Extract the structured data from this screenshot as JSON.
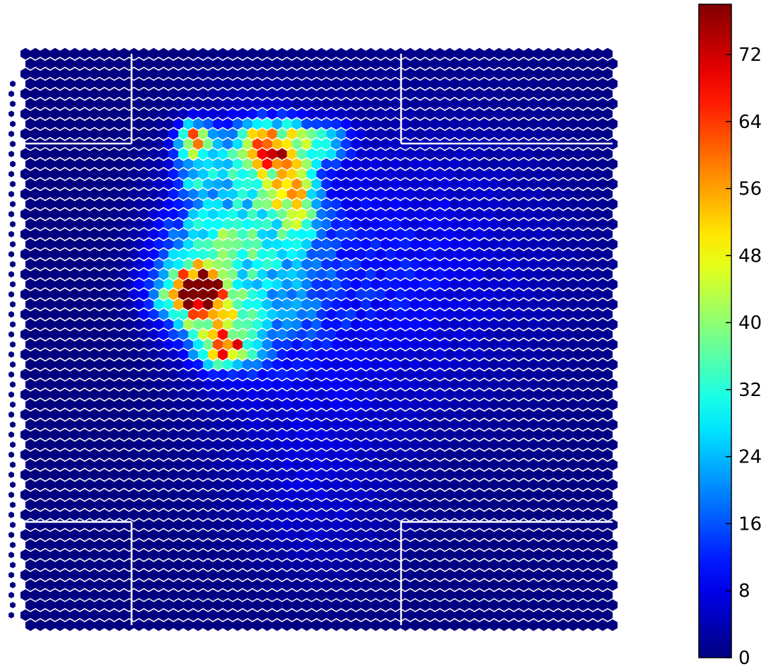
{
  "chart_data": {
    "type": "heatmap",
    "subtype": "hexbin",
    "title": "",
    "xlabel": "",
    "ylabel": "",
    "axes_visible": false,
    "colormap": "jet",
    "colorbar": {
      "min": 0,
      "max": 78,
      "ticks": [
        0,
        8,
        16,
        24,
        32,
        40,
        48,
        56,
        64,
        72
      ],
      "labels": [
        "0",
        "8",
        "16",
        "24",
        "32",
        "40",
        "48",
        "56",
        "64",
        "72"
      ],
      "placement": "right"
    },
    "grid": {
      "cols": 60,
      "rows": 58
    },
    "background_value": 0,
    "hotspots": [
      {
        "col": 18,
        "row": 23.5,
        "value": 78,
        "sx": 1.0,
        "sy": 1.0
      },
      {
        "col": 16.5,
        "row": 23.5,
        "value": 44,
        "sx": 2.6,
        "sy": 2.2
      },
      {
        "col": 19,
        "row": 26,
        "value": 20,
        "sx": 2.0,
        "sy": 2.2
      },
      {
        "col": 20.5,
        "row": 29.5,
        "value": 46,
        "sx": 1.6,
        "sy": 1.1
      },
      {
        "col": 20,
        "row": 27.5,
        "value": 16,
        "sx": 3.5,
        "sy": 3.0
      },
      {
        "col": 17,
        "row": 8.5,
        "value": 44,
        "sx": 1.0,
        "sy": 1.1
      },
      {
        "col": 17.5,
        "row": 11.5,
        "value": 20,
        "sx": 1.6,
        "sy": 2.4
      },
      {
        "col": 23,
        "row": 10,
        "value": 26,
        "sx": 2.0,
        "sy": 2.2
      },
      {
        "col": 25,
        "row": 9,
        "value": 28,
        "sx": 2.0,
        "sy": 1.5
      },
      {
        "col": 28,
        "row": 9,
        "value": 24,
        "sx": 2.5,
        "sy": 1.5
      },
      {
        "col": 27.5,
        "row": 15,
        "value": 32,
        "sx": 1.4,
        "sy": 2.4
      },
      {
        "col": 25.5,
        "row": 13,
        "value": 16,
        "sx": 2.5,
        "sy": 2.5
      },
      {
        "col": 31,
        "row": 8.5,
        "value": 14,
        "sx": 1.5,
        "sy": 1.2
      },
      {
        "col": 19,
        "row": 19,
        "value": 20,
        "sx": 3.5,
        "sy": 2.5
      },
      {
        "col": 25,
        "row": 24,
        "value": 12,
        "sx": 4.5,
        "sy": 4.5
      },
      {
        "col": 22,
        "row": 15,
        "value": 14,
        "sx": 5.0,
        "sy": 5.5
      },
      {
        "col": 33,
        "row": 22,
        "value": 8,
        "sx": 8.0,
        "sy": 9.0
      },
      {
        "col": 45,
        "row": 20,
        "value": 5,
        "sx": 9.0,
        "sy": 10.0
      },
      {
        "col": 28,
        "row": 38,
        "value": 5,
        "sx": 7.0,
        "sy": 6.0
      },
      {
        "col": 30,
        "row": 47,
        "value": 4,
        "sx": 5.0,
        "sy": 4.0
      }
    ]
  }
}
